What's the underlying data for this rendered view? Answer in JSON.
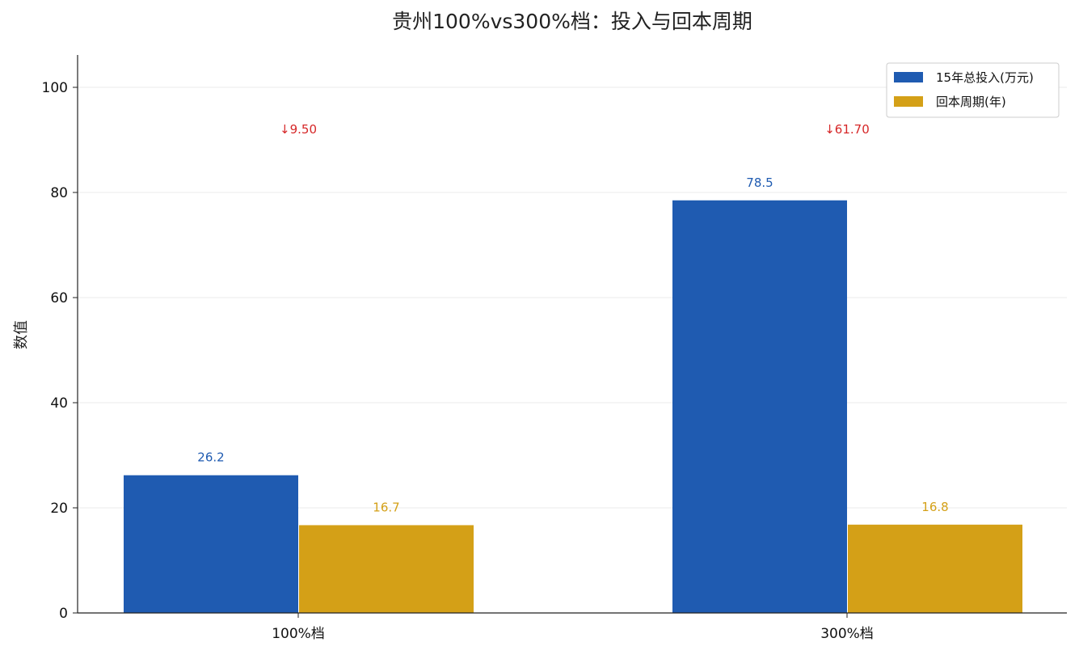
{
  "chart_data": {
    "type": "bar",
    "title": "贵州100%vs300%档：投入与回本周期",
    "xlabel": "",
    "ylabel": "数值",
    "categories": [
      "100%档",
      "300%档"
    ],
    "series": [
      {
        "name": "15年总投入(万元)",
        "values": [
          26.2,
          78.5
        ],
        "value_labels": [
          "26.2",
          "78.5"
        ],
        "color": "#1f5bb1"
      },
      {
        "name": "回本周期(年)",
        "values": [
          16.7,
          16.8
        ],
        "value_labels": [
          "16.7",
          "16.8"
        ],
        "color": "#d4a017"
      }
    ],
    "annotations": [
      {
        "category": "100%档",
        "text": "↓9.50",
        "y": 92,
        "color": "#d62728"
      },
      {
        "category": "300%档",
        "text": "↓61.70",
        "y": 92,
        "color": "#d62728"
      }
    ],
    "ylim": [
      0,
      106
    ],
    "yticks": [
      0,
      20,
      40,
      60,
      80,
      100
    ],
    "grid": true,
    "legend_position": "top-right"
  }
}
